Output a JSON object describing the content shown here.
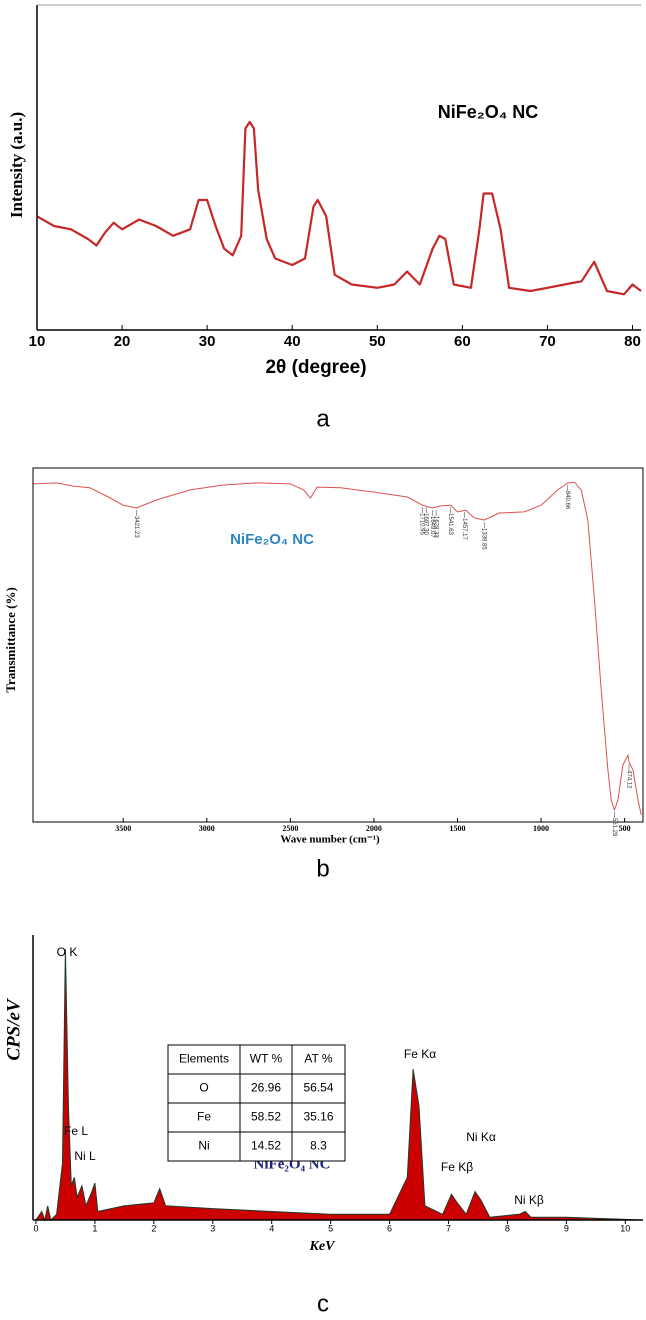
{
  "chart_data": [
    {
      "type": "line",
      "caption": "a",
      "x_label": "2θ (degree)",
      "y_label": "Intensity (a.u.)",
      "annotations": [
        {
          "text": "NiFe₂O₄ NC"
        }
      ],
      "color": "#c62828",
      "xlim": [
        10,
        81
      ],
      "xticks": [
        10,
        20,
        30,
        40,
        50,
        60,
        70,
        80
      ],
      "ylim": [
        0,
        100
      ],
      "x": [
        10,
        12,
        14,
        16,
        17,
        18,
        19,
        20,
        22,
        24,
        26,
        28,
        29,
        30,
        31,
        32,
        33,
        34,
        34.5,
        35,
        35.5,
        36,
        37,
        38,
        40,
        41.5,
        42.5,
        43,
        44,
        45,
        47,
        50,
        52,
        53.5,
        55,
        56.5,
        57.3,
        58,
        59,
        61,
        62,
        62.5,
        63.5,
        64.5,
        65.5,
        68,
        70,
        72,
        74,
        75.5,
        77,
        79,
        80,
        81
      ],
      "values": [
        35,
        32,
        31,
        28,
        26,
        30,
        33,
        31,
        34,
        32,
        29,
        31,
        40,
        40,
        32,
        25,
        23,
        29,
        62,
        64,
        62,
        43,
        28,
        22,
        20,
        22,
        38,
        40,
        35,
        17,
        14,
        13,
        14,
        18,
        14,
        25,
        29,
        28,
        14,
        13,
        31,
        42,
        42,
        31,
        13,
        12,
        13,
        14,
        15,
        21,
        12,
        11,
        14,
        12
      ]
    },
    {
      "type": "line",
      "caption": "b",
      "x_label": "Wave number (cm⁻¹)",
      "y_label": "Transmittance (%)",
      "annotations": [
        {
          "text": "NiFe₂O₄ NC"
        }
      ],
      "color": "#d9534f",
      "xlim": [
        4040,
        390
      ],
      "xticks": [
        3500,
        3000,
        2500,
        2000,
        1500,
        1000,
        500
      ],
      "ylim": [
        0,
        100
      ],
      "peak_labels": [
        {
          "x": 3421.23,
          "label": "3421.23"
        },
        {
          "x": 1710.95,
          "label": "1710.95"
        },
        {
          "x": 1687.3,
          "label": "1687.30"
        },
        {
          "x": 1649.07,
          "label": "1649.07"
        },
        {
          "x": 1628.33,
          "label": "1628.33"
        },
        {
          "x": 1541.63,
          "label": "1541.63"
        },
        {
          "x": 1457.17,
          "label": "1457.17"
        },
        {
          "x": 1339.85,
          "label": "1339.85"
        },
        {
          "x": 840.66,
          "label": "840.66"
        },
        {
          "x": 561.29,
          "label": "561.29"
        },
        {
          "x": 474.12,
          "label": "474.12"
        }
      ],
      "x": [
        4040,
        3900,
        3800,
        3700,
        3600,
        3500,
        3421,
        3300,
        3100,
        2900,
        2700,
        2500,
        2420,
        2380,
        2340,
        2200,
        2000,
        1800,
        1710,
        1650,
        1600,
        1540,
        1500,
        1450,
        1400,
        1340,
        1250,
        1100,
        1000,
        900,
        840,
        800,
        760,
        720,
        680,
        640,
        600,
        580,
        561,
        540,
        510,
        480,
        474,
        450,
        420,
        400
      ],
      "values": [
        95.5,
        95.8,
        94.9,
        94.4,
        92.1,
        89.5,
        88.7,
        91,
        93.8,
        95.2,
        95.8,
        95.5,
        93.8,
        91.5,
        94.6,
        94.4,
        93.2,
        91.8,
        89.5,
        88.7,
        89.3,
        89.5,
        87.6,
        88.1,
        85.9,
        85.3,
        87.3,
        87.6,
        89.5,
        93.8,
        95.8,
        96,
        93.8,
        85.3,
        62.7,
        37.3,
        14.7,
        6.2,
        3.4,
        6.2,
        16.1,
        18.9,
        16.9,
        14.7,
        6.2,
        2
      ]
    },
    {
      "type": "area",
      "caption": "c",
      "x_label": "KeV",
      "y_label": "CPS/eV",
      "annotations": [
        {
          "text": "NiFe₂O₄ NC"
        }
      ],
      "color": "#cc0000",
      "peak_labels": [
        "O  K",
        "Fe L",
        "Ni L",
        "Fe Kα",
        "Ni Kα",
        "Fe Kβ",
        "Ni Kβ"
      ],
      "table": {
        "header": [
          "Elements",
          "WT %",
          "AT %"
        ],
        "rows": [
          [
            "O",
            26.96,
            56.54
          ],
          [
            "Fe",
            58.52,
            35.16
          ],
          [
            "Ni",
            14.52,
            8.3
          ]
        ]
      },
      "xlim": [
        -0.05,
        10.3
      ],
      "xticks": [
        0,
        1,
        2,
        3,
        4,
        5,
        6,
        7,
        8,
        9,
        10
      ],
      "ylim": [
        0,
        100
      ],
      "x": [
        0,
        0.1,
        0.15,
        0.2,
        0.25,
        0.35,
        0.45,
        0.5,
        0.55,
        0.6,
        0.65,
        0.7,
        0.78,
        0.85,
        0.95,
        1.0,
        1.05,
        1.5,
        2.0,
        2.1,
        2.2,
        3,
        4,
        5,
        6,
        6.3,
        6.4,
        6.5,
        6.6,
        6.9,
        7.05,
        7.15,
        7.3,
        7.45,
        7.55,
        7.7,
        8.2,
        8.3,
        8.4,
        9,
        10.3
      ],
      "values": [
        0,
        3,
        0,
        5,
        0,
        2,
        20,
        95,
        40,
        12,
        15,
        8,
        12,
        5,
        10,
        13,
        3,
        5,
        6,
        11,
        5,
        4,
        3,
        2,
        2,
        15,
        53,
        40,
        5,
        2,
        9,
        6,
        2,
        10,
        7,
        1,
        2,
        3,
        1,
        1,
        0
      ]
    }
  ]
}
